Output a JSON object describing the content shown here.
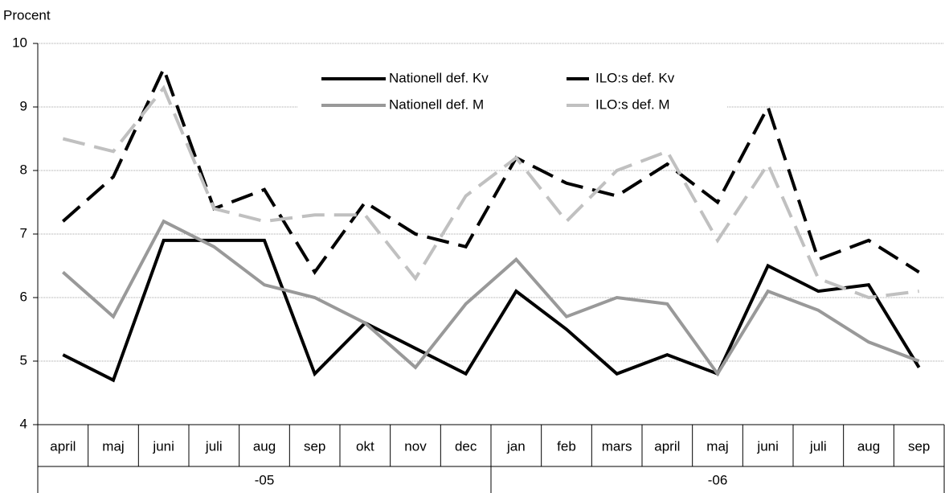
{
  "chart_data": {
    "type": "line",
    "y_label": "Procent",
    "categories": [
      "april",
      "maj",
      "juni",
      "juli",
      "aug",
      "sep",
      "okt",
      "nov",
      "dec",
      "jan",
      "feb",
      "mars",
      "april",
      "maj",
      "juni",
      "juli",
      "aug",
      "sep"
    ],
    "x_groups": [
      {
        "label": "-05",
        "count": 9
      },
      {
        "label": "-06",
        "count": 9
      }
    ],
    "series": [
      {
        "name": "Nationell def. Kv",
        "color": "#000000",
        "dashed": false,
        "values": [
          5.1,
          4.7,
          6.9,
          6.9,
          6.9,
          4.8,
          5.6,
          5.2,
          4.8,
          6.1,
          5.5,
          4.8,
          5.1,
          4.8,
          6.5,
          6.1,
          6.2,
          4.9
        ]
      },
      {
        "name": "ILO:s def. Kv",
        "color": "#000000",
        "dashed": true,
        "values": [
          7.2,
          7.9,
          9.6,
          7.4,
          7.7,
          6.4,
          7.5,
          7.0,
          6.8,
          8.2,
          7.8,
          7.6,
          8.1,
          7.5,
          9.0,
          6.6,
          6.9,
          6.4
        ]
      },
      {
        "name": "Nationell def. M",
        "color": "#999999",
        "dashed": false,
        "values": [
          6.4,
          5.7,
          7.2,
          6.8,
          6.2,
          6.0,
          5.6,
          4.9,
          5.9,
          6.6,
          5.7,
          6.0,
          5.9,
          4.8,
          6.1,
          5.8,
          5.3,
          5.0
        ]
      },
      {
        "name": "ILO:s def. M",
        "color": "#c0c0c0",
        "dashed": true,
        "values": [
          8.5,
          8.3,
          9.3,
          7.4,
          7.2,
          7.3,
          7.3,
          6.3,
          7.6,
          8.2,
          7.2,
          8.0,
          8.3,
          6.9,
          8.1,
          6.3,
          6.0,
          6.1
        ]
      }
    ],
    "ylim": [
      4,
      10
    ],
    "yticks": [
      4,
      5,
      6,
      7,
      8,
      9,
      10
    ],
    "grid": true,
    "legend": "top"
  }
}
